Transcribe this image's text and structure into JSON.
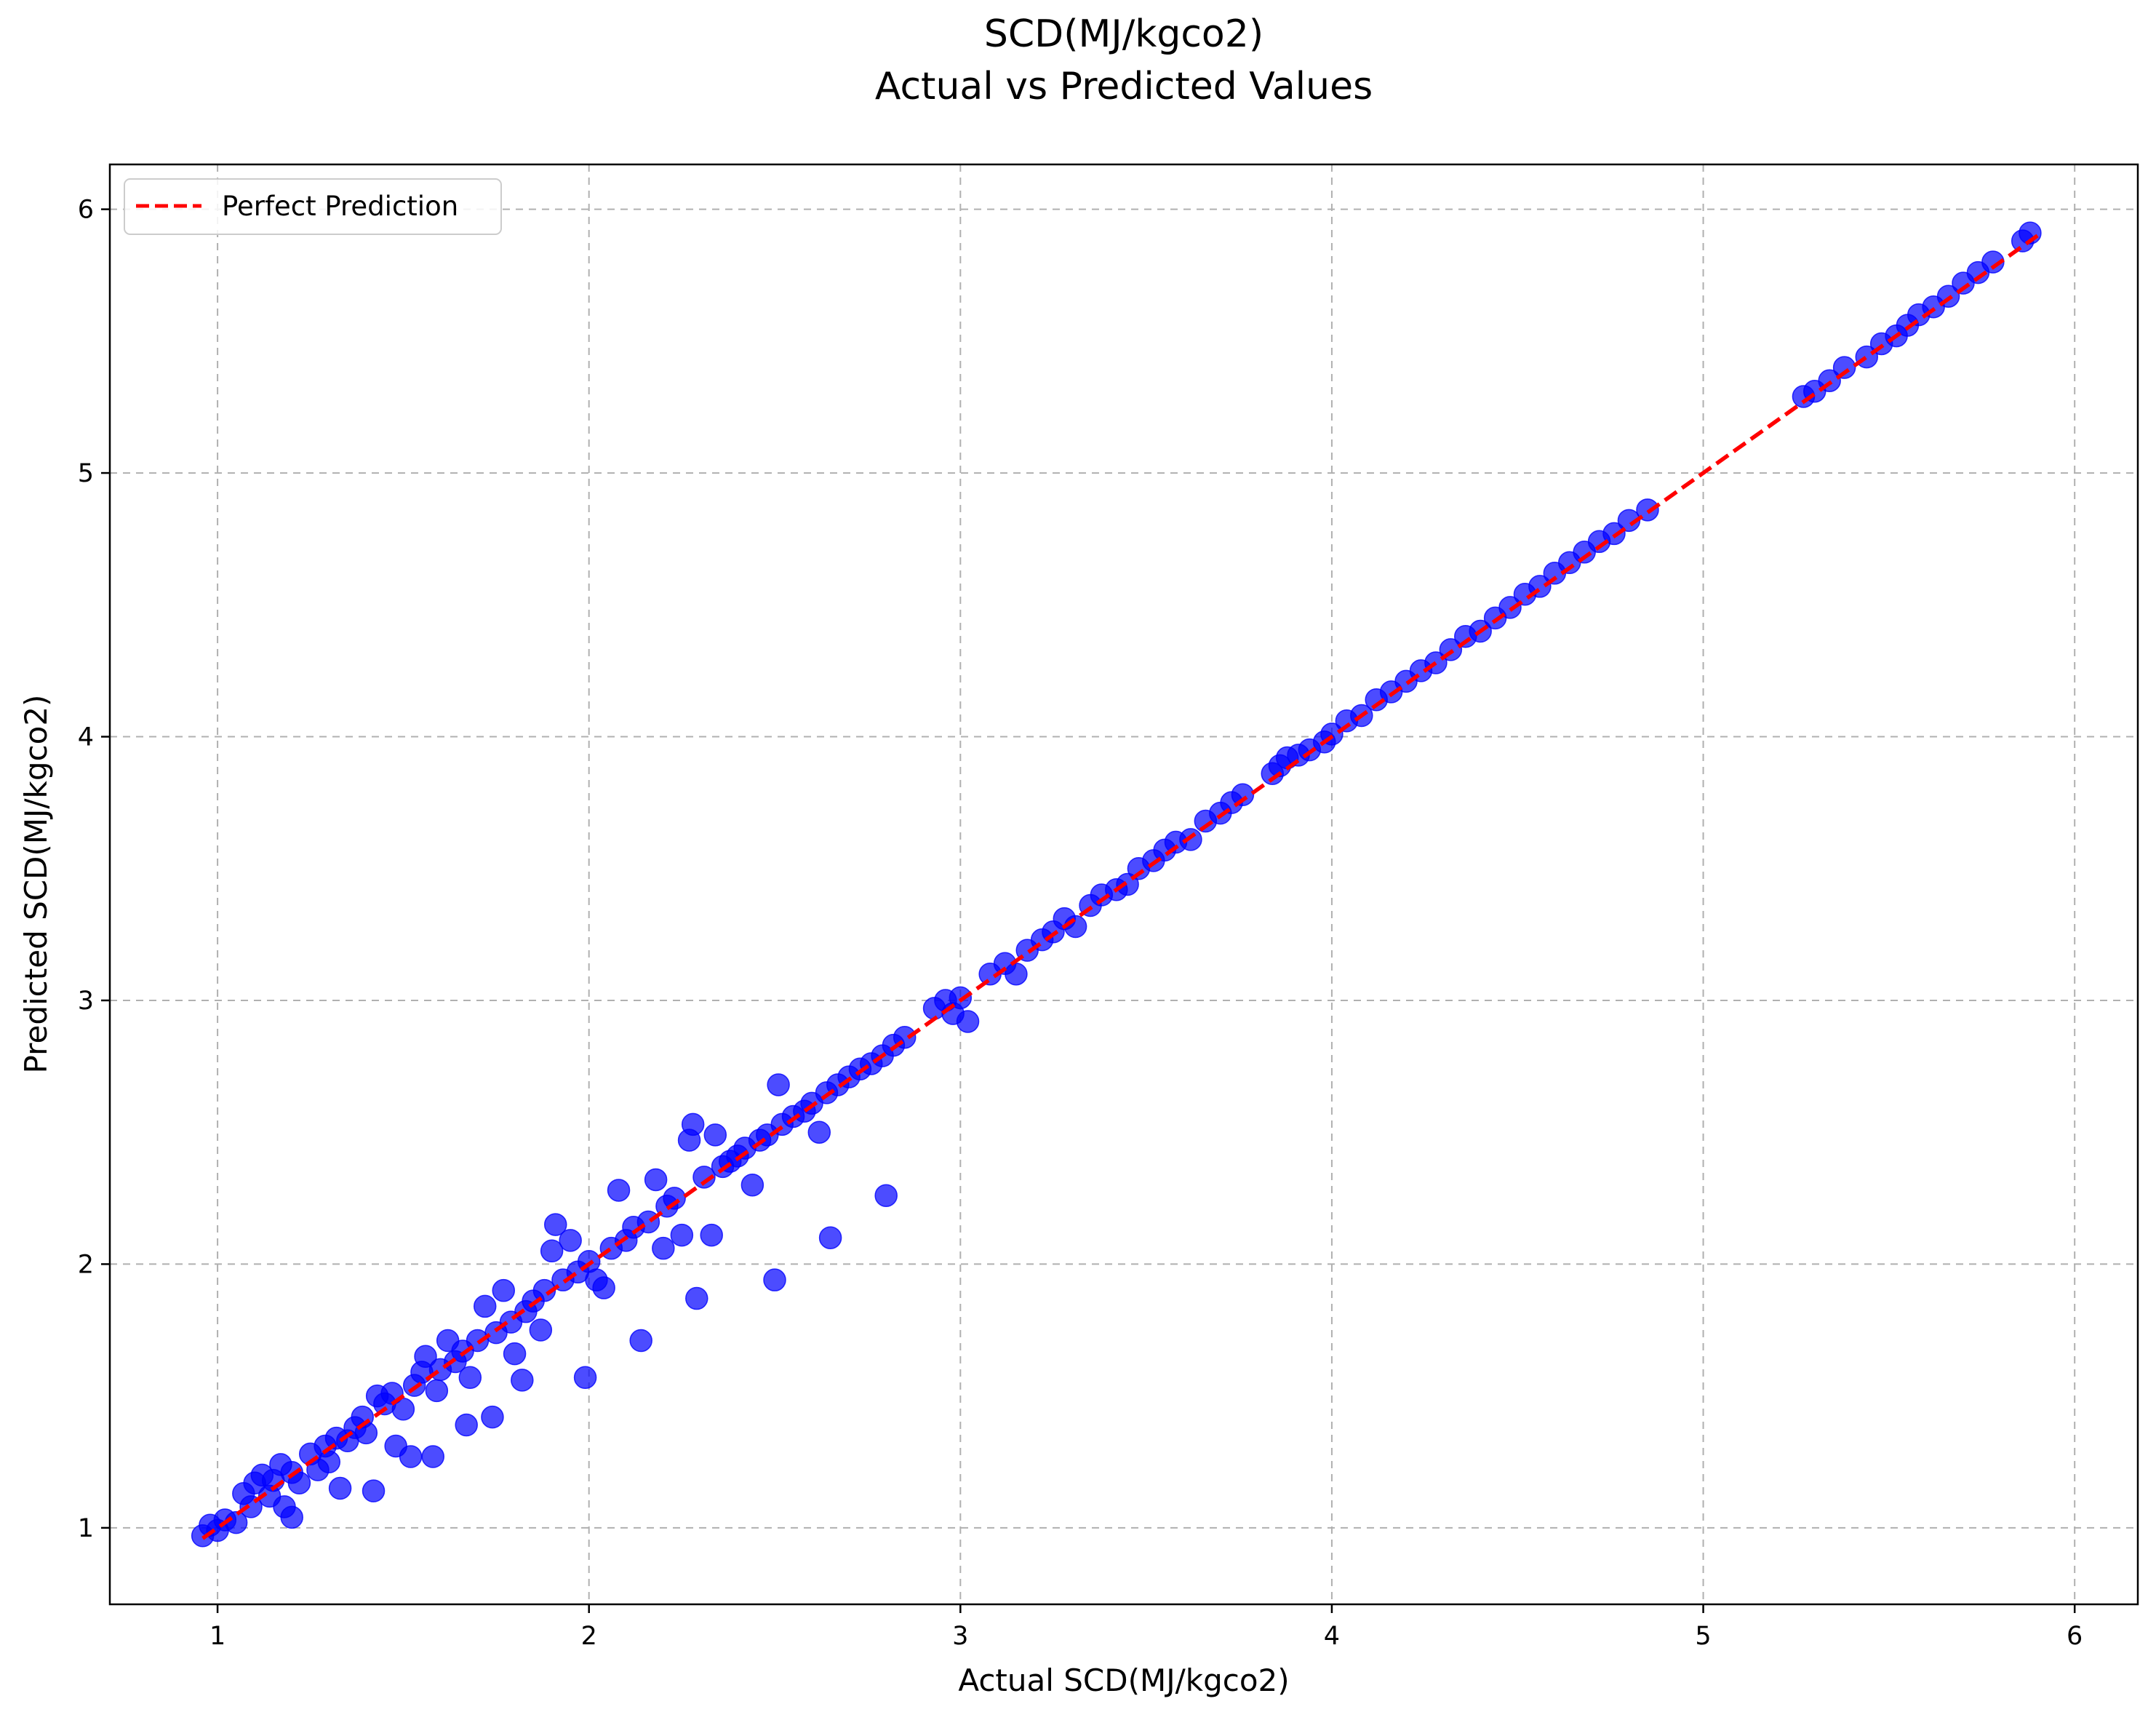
{
  "chart_data": {
    "type": "scatter",
    "title": "SCD(MJ/kgco2)",
    "subtitle": "Actual vs Predicted Values",
    "xlabel": "Actual SCD(MJ/kgco2)",
    "ylabel": "Predicted SCD(MJ/kgco2)",
    "xlim": [
      0.71,
      6.17
    ],
    "ylim": [
      0.71,
      6.17
    ],
    "x_ticks": [
      1,
      2,
      3,
      4,
      5,
      6
    ],
    "y_ticks": [
      1,
      2,
      3,
      4,
      5,
      6
    ],
    "x_tick_labels": [
      "1",
      "2",
      "3",
      "4",
      "5",
      "6"
    ],
    "y_tick_labels": [
      "1",
      "2",
      "3",
      "4",
      "5",
      "6"
    ],
    "grid": true,
    "legend": {
      "placement": "upper-left",
      "entries": [
        "Perfect Prediction"
      ]
    },
    "series": [
      {
        "name": "",
        "kind": "scatter",
        "color": "#0000ff",
        "points": [
          [
            0.96,
            0.97
          ],
          [
            0.98,
            1.01
          ],
          [
            1.0,
            0.99
          ],
          [
            1.02,
            1.03
          ],
          [
            1.05,
            1.02
          ],
          [
            1.07,
            1.13
          ],
          [
            1.09,
            1.08
          ],
          [
            1.1,
            1.17
          ],
          [
            1.12,
            1.2
          ],
          [
            1.14,
            1.12
          ],
          [
            1.15,
            1.18
          ],
          [
            1.17,
            1.24
          ],
          [
            1.18,
            1.08
          ],
          [
            1.2,
            1.04
          ],
          [
            1.2,
            1.21
          ],
          [
            1.22,
            1.17
          ],
          [
            1.25,
            1.28
          ],
          [
            1.27,
            1.22
          ],
          [
            1.29,
            1.31
          ],
          [
            1.3,
            1.25
          ],
          [
            1.32,
            1.34
          ],
          [
            1.33,
            1.15
          ],
          [
            1.35,
            1.33
          ],
          [
            1.37,
            1.38
          ],
          [
            1.39,
            1.42
          ],
          [
            1.4,
            1.36
          ],
          [
            1.42,
            1.14
          ],
          [
            1.43,
            1.5
          ],
          [
            1.45,
            1.47
          ],
          [
            1.47,
            1.51
          ],
          [
            1.48,
            1.31
          ],
          [
            1.5,
            1.45
          ],
          [
            1.52,
            1.27
          ],
          [
            1.53,
            1.54
          ],
          [
            1.55,
            1.59
          ],
          [
            1.56,
            1.65
          ],
          [
            1.58,
            1.27
          ],
          [
            1.59,
            1.52
          ],
          [
            1.6,
            1.6
          ],
          [
            1.62,
            1.71
          ],
          [
            1.64,
            1.63
          ],
          [
            1.66,
            1.67
          ],
          [
            1.67,
            1.39
          ],
          [
            1.68,
            1.57
          ],
          [
            1.7,
            1.71
          ],
          [
            1.72,
            1.84
          ],
          [
            1.74,
            1.42
          ],
          [
            1.75,
            1.74
          ],
          [
            1.77,
            1.9
          ],
          [
            1.79,
            1.78
          ],
          [
            1.8,
            1.66
          ],
          [
            1.82,
            1.56
          ],
          [
            1.83,
            1.82
          ],
          [
            1.85,
            1.86
          ],
          [
            1.87,
            1.75
          ],
          [
            1.88,
            1.9
          ],
          [
            1.9,
            2.05
          ],
          [
            1.91,
            2.15
          ],
          [
            1.93,
            1.94
          ],
          [
            1.95,
            2.09
          ],
          [
            1.97,
            1.97
          ],
          [
            1.99,
            1.57
          ],
          [
            2.0,
            2.01
          ],
          [
            2.02,
            1.94
          ],
          [
            2.04,
            1.91
          ],
          [
            2.06,
            2.06
          ],
          [
            2.08,
            2.28
          ],
          [
            2.1,
            2.09
          ],
          [
            2.12,
            2.14
          ],
          [
            2.14,
            1.71
          ],
          [
            2.16,
            2.16
          ],
          [
            2.18,
            2.32
          ],
          [
            2.2,
            2.06
          ],
          [
            2.21,
            2.22
          ],
          [
            2.23,
            2.25
          ],
          [
            2.25,
            2.11
          ],
          [
            2.27,
            2.47
          ],
          [
            2.28,
            2.53
          ],
          [
            2.29,
            1.87
          ],
          [
            2.31,
            2.33
          ],
          [
            2.33,
            2.11
          ],
          [
            2.34,
            2.49
          ],
          [
            2.36,
            2.37
          ],
          [
            2.38,
            2.39
          ],
          [
            2.4,
            2.41
          ],
          [
            2.42,
            2.44
          ],
          [
            2.44,
            2.3
          ],
          [
            2.46,
            2.47
          ],
          [
            2.48,
            2.49
          ],
          [
            2.5,
            1.94
          ],
          [
            2.51,
            2.68
          ],
          [
            2.52,
            2.53
          ],
          [
            2.55,
            2.56
          ],
          [
            2.58,
            2.58
          ],
          [
            2.6,
            2.61
          ],
          [
            2.62,
            2.5
          ],
          [
            2.64,
            2.65
          ],
          [
            2.65,
            2.1
          ],
          [
            2.67,
            2.68
          ],
          [
            2.7,
            2.71
          ],
          [
            2.73,
            2.74
          ],
          [
            2.76,
            2.76
          ],
          [
            2.79,
            2.79
          ],
          [
            2.8,
            2.26
          ],
          [
            2.82,
            2.83
          ],
          [
            2.85,
            2.86
          ],
          [
            2.93,
            2.97
          ],
          [
            2.96,
            3.0
          ],
          [
            2.98,
            2.95
          ],
          [
            3.0,
            3.01
          ],
          [
            3.02,
            2.92
          ],
          [
            3.08,
            3.1
          ],
          [
            3.12,
            3.14
          ],
          [
            3.15,
            3.1
          ],
          [
            3.18,
            3.19
          ],
          [
            3.22,
            3.23
          ],
          [
            3.25,
            3.26
          ],
          [
            3.28,
            3.31
          ],
          [
            3.31,
            3.28
          ],
          [
            3.35,
            3.36
          ],
          [
            3.38,
            3.4
          ],
          [
            3.42,
            3.42
          ],
          [
            3.45,
            3.44
          ],
          [
            3.48,
            3.5
          ],
          [
            3.52,
            3.53
          ],
          [
            3.55,
            3.57
          ],
          [
            3.58,
            3.6
          ],
          [
            3.62,
            3.61
          ],
          [
            3.66,
            3.68
          ],
          [
            3.7,
            3.71
          ],
          [
            3.73,
            3.75
          ],
          [
            3.76,
            3.78
          ],
          [
            3.84,
            3.86
          ],
          [
            3.86,
            3.89
          ],
          [
            3.88,
            3.92
          ],
          [
            3.91,
            3.93
          ],
          [
            3.94,
            3.95
          ],
          [
            3.98,
            3.98
          ],
          [
            4.0,
            4.01
          ],
          [
            4.04,
            4.06
          ],
          [
            4.08,
            4.08
          ],
          [
            4.12,
            4.14
          ],
          [
            4.16,
            4.17
          ],
          [
            4.2,
            4.21
          ],
          [
            4.24,
            4.25
          ],
          [
            4.28,
            4.28
          ],
          [
            4.32,
            4.33
          ],
          [
            4.36,
            4.38
          ],
          [
            4.4,
            4.4
          ],
          [
            4.44,
            4.45
          ],
          [
            4.48,
            4.49
          ],
          [
            4.52,
            4.54
          ],
          [
            4.56,
            4.57
          ],
          [
            4.6,
            4.62
          ],
          [
            4.64,
            4.66
          ],
          [
            4.68,
            4.7
          ],
          [
            4.72,
            4.74
          ],
          [
            4.76,
            4.77
          ],
          [
            4.8,
            4.82
          ],
          [
            4.85,
            4.86
          ],
          [
            5.27,
            5.29
          ],
          [
            5.3,
            5.31
          ],
          [
            5.34,
            5.35
          ],
          [
            5.38,
            5.4
          ],
          [
            5.44,
            5.44
          ],
          [
            5.48,
            5.49
          ],
          [
            5.52,
            5.52
          ],
          [
            5.55,
            5.56
          ],
          [
            5.58,
            5.6
          ],
          [
            5.62,
            5.63
          ],
          [
            5.66,
            5.67
          ],
          [
            5.7,
            5.72
          ],
          [
            5.74,
            5.76
          ],
          [
            5.78,
            5.8
          ],
          [
            5.86,
            5.88
          ],
          [
            5.88,
            5.91
          ]
        ]
      },
      {
        "name": "Perfect Prediction",
        "kind": "line",
        "color": "#ff0000",
        "dash": "dashed",
        "points": [
          [
            0.96,
            0.96
          ],
          [
            5.9,
            5.9
          ]
        ]
      }
    ]
  }
}
